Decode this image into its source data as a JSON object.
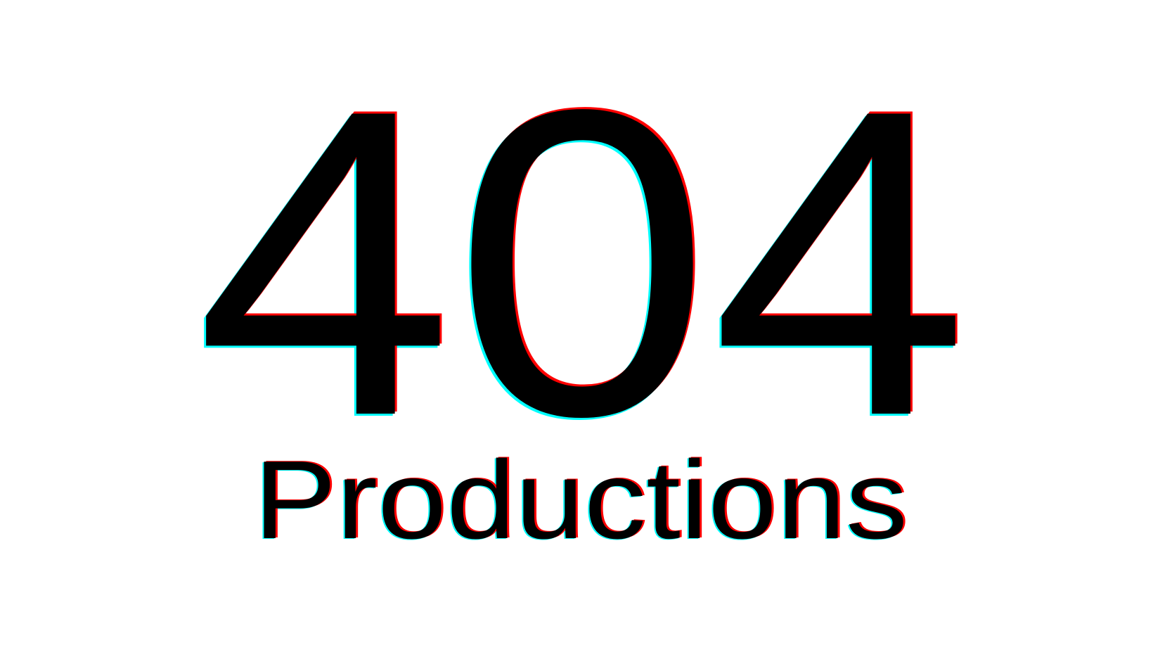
{
  "logo": {
    "code": "404",
    "word": "Productions"
  },
  "colors": {
    "background": "#ffffff",
    "text": "#000000",
    "red_shadow": "#ff0000",
    "cyan_shadow": "#00ffff"
  }
}
